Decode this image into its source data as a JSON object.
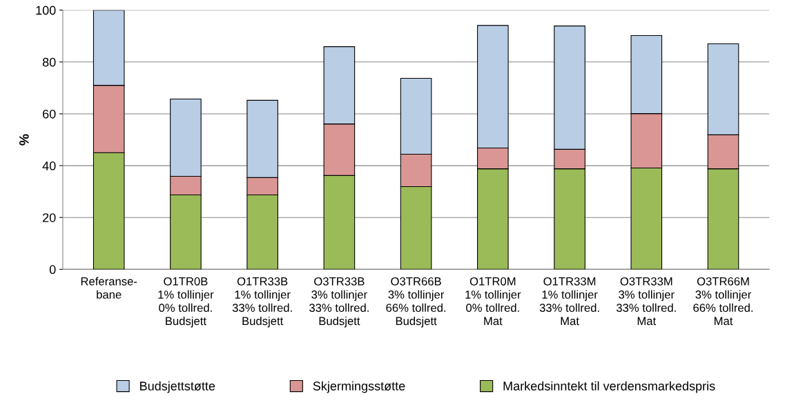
{
  "chart_data": {
    "type": "bar",
    "stacked": true,
    "ylabel": "%",
    "ylim": [
      0,
      100
    ],
    "yticks": [
      0,
      20,
      40,
      60,
      80,
      100
    ],
    "grid": "y",
    "legend": "bottom",
    "categories": [
      "Referanse-\nbane",
      "O1TR0B\n1% tollinjer\n0% tollred.\nBudsjett",
      "O1TR33B\n1% tollinjer\n33% tollred.\nBudsjett",
      "O3TR33B\n3% tollinjer\n33% tollred.\nBudsjett",
      "O3TR66B\n3% tollinjer\n66% tollred.\nBudsjett",
      "O1TR0M\n1% tollinjer\n0% tollred.\nMat",
      "O1TR33M\n1% tollinjer\n33% tollred.\nMat",
      "O3TR33M\n3% tollinjer\n33% tollred.\nMat",
      "O3TR66M\n3% tollinjer\n66% tollred.\nMat"
    ],
    "series": [
      {
        "name": "Markedsinntekt til verdensmarkedspris",
        "color": "#9bbb59",
        "values": [
          45,
          28.7,
          28.7,
          36.2,
          31.9,
          38.8,
          38.8,
          39.1,
          38.8
        ]
      },
      {
        "name": "Skjermingsstøtte",
        "color": "#d99694",
        "values": [
          26,
          7.2,
          6.7,
          19.9,
          12.5,
          8,
          7.5,
          21,
          13.1
        ]
      },
      {
        "name": "Budsjettstøtte",
        "color": "#b9cde5",
        "values": [
          29,
          29.8,
          29.8,
          29.8,
          29.3,
          47.3,
          47.6,
          30.1,
          35.1
        ]
      }
    ]
  }
}
